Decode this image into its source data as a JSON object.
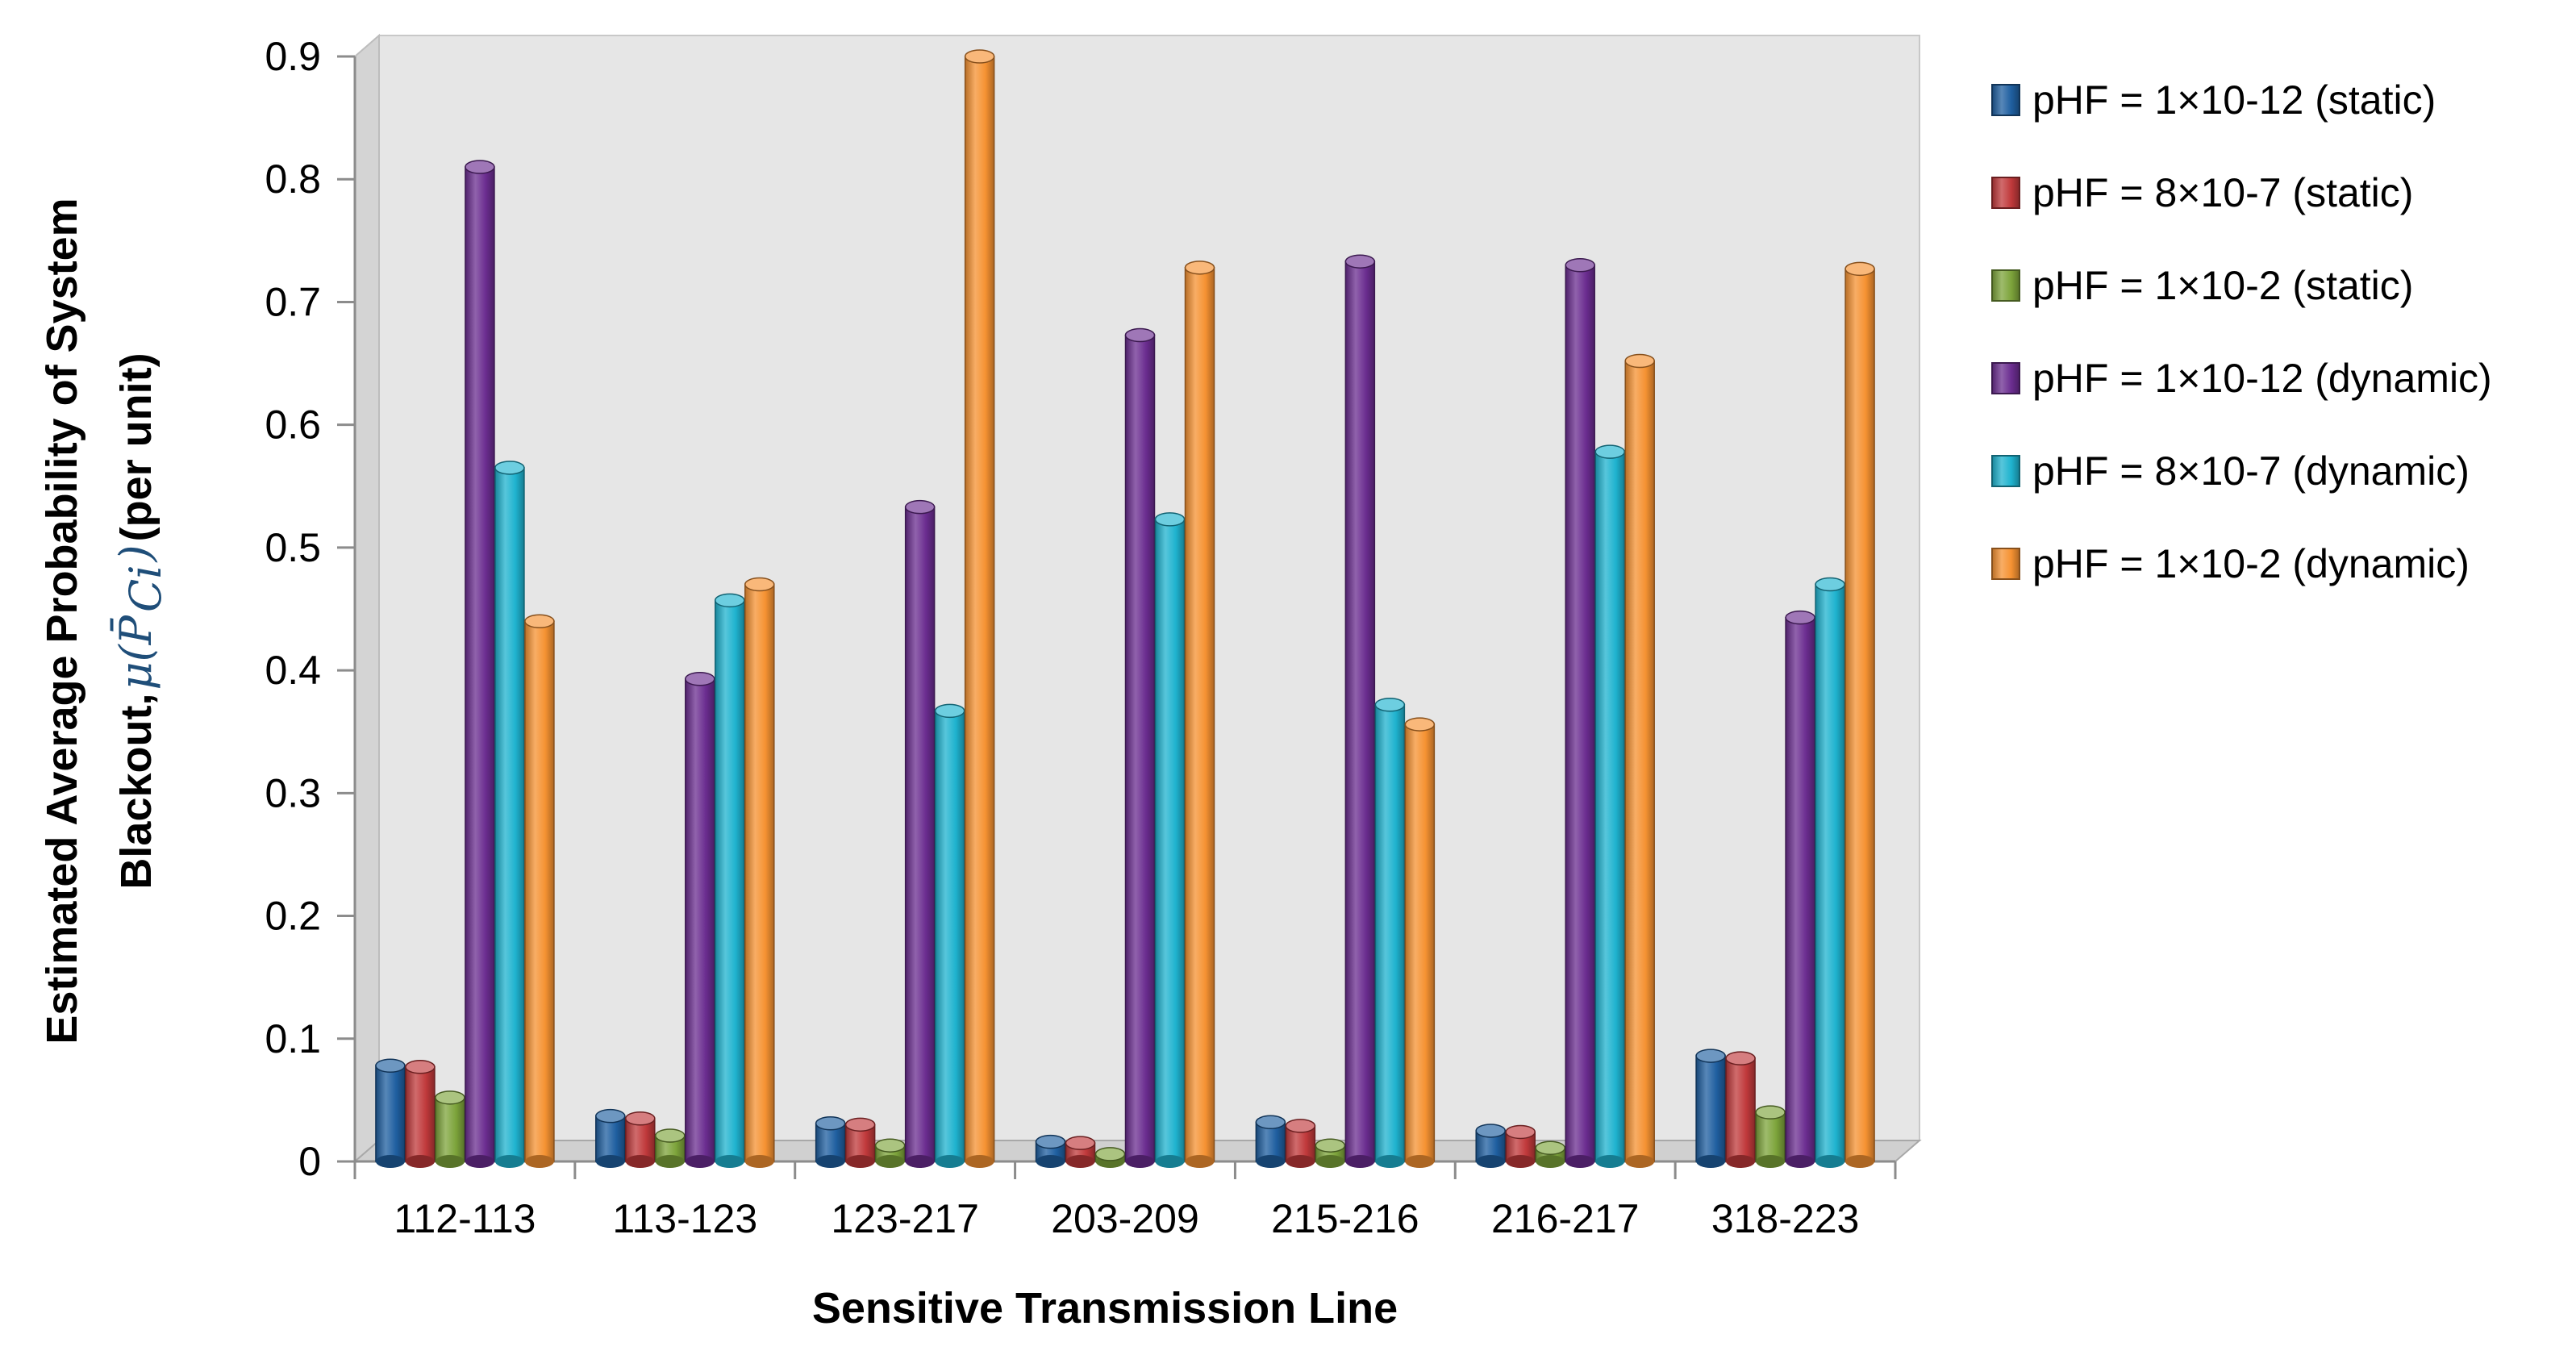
{
  "chart_data": {
    "type": "bar",
    "title": "",
    "xlabel": "Sensitive Transmission Line",
    "ylabel_line1": "Estimated Average Probability of System",
    "ylabel_line2": "Blackout,",
    "ylabel_math": "μ(P̄",
    "ylabel_math_sub": "Ci",
    "ylabel_math_close": ")",
    "ylabel_unit": "(per unit)",
    "ylim": [
      0,
      0.9
    ],
    "yticks": [
      "0",
      "0.1",
      "0.2",
      "0.3",
      "0.4",
      "0.5",
      "0.6",
      "0.7",
      "0.8",
      "0.9"
    ],
    "categories": [
      "112-113",
      "113-123",
      "123-217",
      "203-209",
      "215-216",
      "216-217",
      "318-223"
    ],
    "legend_position": "right",
    "grid": false,
    "series": [
      {
        "name": "pHF = 1×10-12 (static)",
        "color": "#1f5fa0",
        "values": [
          0.078,
          0.037,
          0.031,
          0.016,
          0.032,
          0.025,
          0.086
        ]
      },
      {
        "name": "pHF = 8×10-7 (static)",
        "color": "#c0393b",
        "values": [
          0.077,
          0.035,
          0.03,
          0.015,
          0.029,
          0.024,
          0.084
        ]
      },
      {
        "name": "pHF = 1×10-2 (static)",
        "color": "#7da43b",
        "values": [
          0.052,
          0.021,
          0.013,
          0.006,
          0.013,
          0.011,
          0.04
        ]
      },
      {
        "name": "pHF = 1×10-12 (dynamic)",
        "color": "#6b2d90",
        "values": [
          0.81,
          0.393,
          0.533,
          0.673,
          0.733,
          0.73,
          0.443
        ]
      },
      {
        "name": "pHF = 8×10-7 (dynamic)",
        "color": "#1fb3cf",
        "values": [
          0.565,
          0.457,
          0.367,
          0.523,
          0.372,
          0.578,
          0.47
        ]
      },
      {
        "name": "pHF = 1×10-2 (dynamic)",
        "color": "#f59232",
        "values": [
          0.44,
          0.47,
          0.9,
          0.728,
          0.356,
          0.652,
          0.727
        ]
      }
    ]
  }
}
